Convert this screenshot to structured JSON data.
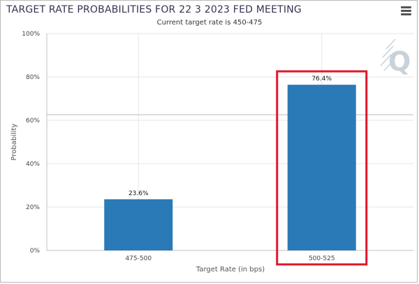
{
  "chart_data": {
    "type": "bar",
    "title": "TARGET RATE PROBABILITIES FOR 22 3 2023 FED MEETING",
    "subtitle": "Current target rate is 450-475",
    "xlabel": "Target Rate (in bps)",
    "ylabel": "Probability",
    "categories": [
      "475-500",
      "500-525"
    ],
    "values": [
      23.6,
      76.4
    ],
    "value_labels": [
      "23.6%",
      "76.4%"
    ],
    "ylim": [
      0,
      100
    ],
    "yticks": [
      0,
      20,
      40,
      60,
      80,
      100
    ],
    "ytick_labels": [
      "0%",
      "20%",
      "40%",
      "60%",
      "80%",
      "100%"
    ],
    "reference_line": 62.6,
    "highlighted_category": "500-525",
    "grid": true,
    "legend": "none",
    "colors": {
      "bar": "#2a7ab8",
      "highlight_box": "#e0162b",
      "grid": "#e6e6e6",
      "axis": "#c0c0c0",
      "reference_line": "#bbbbbb",
      "watermark": "#c8d2da"
    }
  },
  "watermark": {
    "letter": "Q"
  }
}
